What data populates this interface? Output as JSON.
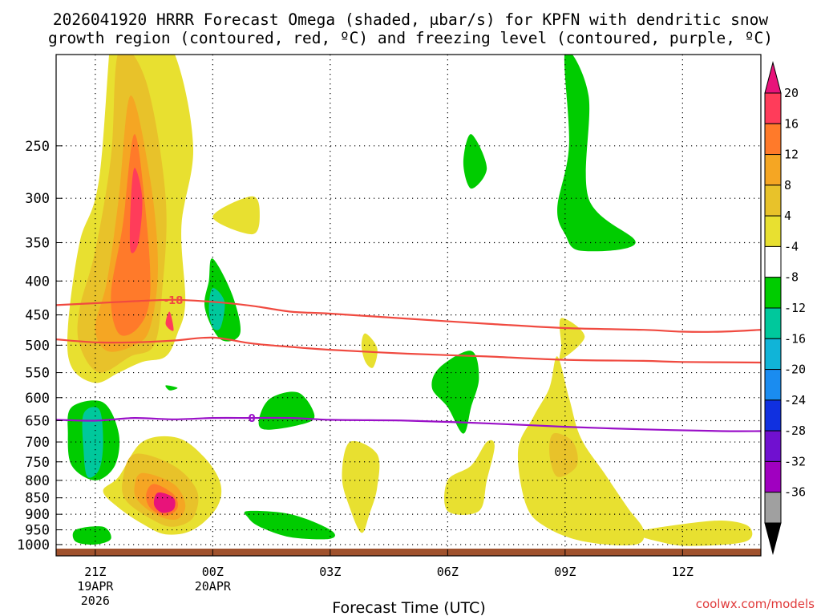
{
  "chart_data": {
    "type": "time-height cross section",
    "title_line1": "2026041920 HRRR Forecast Omega (shaded, μbar/s) for KPFN with dendritic snow",
    "title_line2": "growth region (contoured, red, ºC) and freezing level (contoured, purple, ºC)",
    "xlabel": "Forecast Time (UTC)",
    "credit": "coolwx.com/models",
    "x_range_hours": [
      -1,
      17
    ],
    "y_ticks": [
      "250",
      "300",
      "350",
      "400",
      "450",
      "500",
      "550",
      "600",
      "650",
      "700",
      "750",
      "800",
      "850",
      "900",
      "950",
      "1000"
    ],
    "x_ticks": [
      {
        "h": 0,
        "label": "21Z",
        "sub1": "19APR",
        "sub2": "2026"
      },
      {
        "h": 3,
        "label": "00Z",
        "sub1": "20APR",
        "sub2": ""
      },
      {
        "h": 6,
        "label": "03Z",
        "sub1": "",
        "sub2": ""
      },
      {
        "h": 9,
        "label": "06Z",
        "sub1": "",
        "sub2": ""
      },
      {
        "h": 12,
        "label": "09Z",
        "sub1": "",
        "sub2": ""
      },
      {
        "h": 15,
        "label": "12Z",
        "sub1": "",
        "sub2": ""
      }
    ],
    "colorbar": {
      "labels": [
        "20",
        "16",
        "12",
        "8",
        "4",
        "-4",
        "-8",
        "-12",
        "-16",
        "-20",
        "-24",
        "-28",
        "-32",
        "-36"
      ],
      "colors": [
        "#ff3c5a",
        "#ff7a2a",
        "#f5a623",
        "#e8c22a",
        "#e8e030",
        "#ffffff",
        "#00cc00",
        "#00c89c",
        "#10b4d8",
        "#1a8cf0",
        "#1030e0",
        "#7010d0",
        "#a000c0",
        "#a0a0a0"
      ],
      "over_color": "#e8137a",
      "under_color": "#000000"
    },
    "contours": [
      {
        "name": "dgz-upper",
        "label": "-18",
        "color": "#f04a40",
        "points": [
          [
            -1,
            435
          ],
          [
            0,
            432
          ],
          [
            1,
            429
          ],
          [
            2,
            427
          ],
          [
            3,
            430
          ],
          [
            4,
            436
          ],
          [
            5,
            445
          ],
          [
            6,
            448
          ],
          [
            8,
            456
          ],
          [
            10,
            464
          ],
          [
            12,
            471
          ],
          [
            14,
            474
          ],
          [
            15,
            477
          ],
          [
            16,
            477
          ],
          [
            17,
            474
          ]
        ]
      },
      {
        "name": "dgz-lower",
        "label": "",
        "color": "#f04a40",
        "points": [
          [
            -1,
            490
          ],
          [
            0,
            495
          ],
          [
            1,
            495
          ],
          [
            2,
            492
          ],
          [
            3,
            487
          ],
          [
            4,
            497
          ],
          [
            5,
            503
          ],
          [
            6,
            508
          ],
          [
            8,
            515
          ],
          [
            10,
            520
          ],
          [
            12,
            526
          ],
          [
            14,
            528
          ],
          [
            15,
            530
          ],
          [
            17,
            531
          ]
        ]
      },
      {
        "name": "freezing-level",
        "label": "0",
        "color": "#9a10c8",
        "points": [
          [
            -1,
            648
          ],
          [
            0,
            650
          ],
          [
            1,
            644
          ],
          [
            2,
            647
          ],
          [
            3,
            644
          ],
          [
            4,
            644
          ],
          [
            5,
            644
          ],
          [
            6,
            648
          ],
          [
            7,
            649
          ],
          [
            8,
            650
          ],
          [
            10,
            656
          ],
          [
            12,
            664
          ],
          [
            14,
            670
          ],
          [
            16,
            674
          ],
          [
            17,
            674
          ]
        ]
      }
    ],
    "omega_regions": [
      {
        "value": 4,
        "color": "#e8e030",
        "points": [
          [
            0.5,
            150
          ],
          [
            1,
            155
          ],
          [
            2,
            180
          ],
          [
            2.5,
            250
          ],
          [
            2.2,
            330
          ],
          [
            2.3,
            430
          ],
          [
            2.1,
            480
          ],
          [
            1.8,
            520
          ],
          [
            1.2,
            530
          ],
          [
            0.6,
            550
          ],
          [
            0,
            570
          ],
          [
            -0.6,
            540
          ],
          [
            -0.7,
            470
          ],
          [
            -0.4,
            350
          ],
          [
            0.1,
            280
          ]
        ]
      },
      {
        "value": 4,
        "color": "#e8e030",
        "points": [
          [
            3,
            320
          ],
          [
            4,
            298
          ],
          [
            4.2,
            318
          ],
          [
            4,
            340
          ]
        ]
      },
      {
        "value": 4,
        "color": "#e8e030",
        "points": [
          [
            6.9,
            480
          ],
          [
            7.2,
            505
          ],
          [
            7.1,
            540
          ],
          [
            6.9,
            530
          ],
          [
            6.8,
            500
          ]
        ]
      },
      {
        "value": 4,
        "color": "#e8e030",
        "points": [
          [
            11.9,
            455
          ],
          [
            12.5,
            485
          ],
          [
            11.9,
            525
          ],
          [
            11.9,
            500
          ]
        ]
      },
      {
        "value": 4,
        "color": "#e8e030",
        "points": [
          [
            11.8,
            520
          ],
          [
            12.1,
            600
          ],
          [
            12.4,
            690
          ],
          [
            13,
            780
          ],
          [
            13.6,
            880
          ],
          [
            14,
            950
          ],
          [
            13.8,
            1000
          ],
          [
            12.5,
            990
          ],
          [
            11.5,
            940
          ],
          [
            11,
            870
          ],
          [
            10.8,
            720
          ],
          [
            11.2,
            640
          ],
          [
            11.6,
            580
          ]
        ]
      },
      {
        "value": 4,
        "color": "#e8e030",
        "points": [
          [
            13.8,
            960
          ],
          [
            14.8,
            935
          ],
          [
            16,
            920
          ],
          [
            16.7,
            940
          ],
          [
            16.6,
            990
          ],
          [
            15.2,
            1005
          ],
          [
            14.4,
            990
          ]
        ]
      },
      {
        "value": 4,
        "color": "#e8e030",
        "points": [
          [
            1.2,
            700
          ],
          [
            2.1,
            690
          ],
          [
            2.8,
            740
          ],
          [
            3.2,
            810
          ],
          [
            3.1,
            880
          ],
          [
            2.5,
            950
          ],
          [
            1.8,
            965
          ],
          [
            1.2,
            930
          ],
          [
            0.6,
            880
          ],
          [
            0.2,
            830
          ],
          [
            0.6,
            790
          ]
        ]
      },
      {
        "value": 4,
        "color": "#e8e030",
        "points": [
          [
            6.5,
            700
          ],
          [
            7.2,
            730
          ],
          [
            7.2,
            820
          ],
          [
            7,
            900
          ],
          [
            6.8,
            960
          ],
          [
            6.5,
            880
          ],
          [
            6.3,
            790
          ]
        ]
      },
      {
        "value": 4,
        "color": "#e8e030",
        "points": [
          [
            9,
            800
          ],
          [
            9.6,
            760
          ],
          [
            10,
            700
          ],
          [
            10.2,
            710
          ],
          [
            10,
            800
          ],
          [
            9.8,
            890
          ],
          [
            9,
            890
          ]
        ]
      },
      {
        "value": 8,
        "color": "#e8c22a",
        "points": [
          [
            0.6,
            180
          ],
          [
            1.3,
            200
          ],
          [
            1.8,
            300
          ],
          [
            1.7,
            420
          ],
          [
            1.5,
            500
          ],
          [
            0.9,
            520
          ],
          [
            0.1,
            550
          ],
          [
            -0.4,
            500
          ],
          [
            -0.4,
            440
          ],
          [
            0,
            360
          ],
          [
            0.4,
            260
          ]
        ]
      },
      {
        "value": 8,
        "color": "#e8c22a",
        "points": [
          [
            11.7,
            680
          ],
          [
            12.2,
            700
          ],
          [
            12.3,
            760
          ],
          [
            11.8,
            790
          ],
          [
            11.6,
            730
          ]
        ]
      },
      {
        "value": 8,
        "color": "#e8c22a",
        "points": [
          [
            1.0,
            730
          ],
          [
            2.0,
            760
          ],
          [
            2.6,
            830
          ],
          [
            2.5,
            910
          ],
          [
            2,
            940
          ],
          [
            1.5,
            920
          ],
          [
            0.8,
            860
          ],
          [
            0.7,
            800
          ]
        ]
      },
      {
        "value": 12,
        "color": "#f5a623",
        "points": [
          [
            0.9,
            210
          ],
          [
            1.4,
            280
          ],
          [
            1.6,
            380
          ],
          [
            1.4,
            470
          ],
          [
            1,
            500
          ],
          [
            0.3,
            510
          ],
          [
            0,
            470
          ],
          [
            0.3,
            400
          ],
          [
            0.6,
            300
          ]
        ]
      },
      {
        "value": 12,
        "color": "#f5a623",
        "points": [
          [
            1.2,
            780
          ],
          [
            2.0,
            810
          ],
          [
            2.3,
            870
          ],
          [
            2.1,
            915
          ],
          [
            1.6,
            905
          ],
          [
            1.1,
            860
          ],
          [
            1.0,
            820
          ]
        ]
      },
      {
        "value": 16,
        "color": "#ff7a2a",
        "points": [
          [
            1,
            240
          ],
          [
            1.3,
            320
          ],
          [
            1.4,
            420
          ],
          [
            1.1,
            470
          ],
          [
            0.6,
            480
          ],
          [
            0.4,
            420
          ],
          [
            0.7,
            330
          ]
        ]
      },
      {
        "value": 16,
        "color": "#ff7a2a",
        "points": [
          [
            1.5,
            810
          ],
          [
            2.0,
            840
          ],
          [
            2.1,
            880
          ],
          [
            1.8,
            905
          ],
          [
            1.4,
            880
          ],
          [
            1.3,
            840
          ]
        ]
      },
      {
        "value": 20,
        "color": "#ff3c5a",
        "points": [
          [
            1.0,
            270
          ],
          [
            1.2,
            300
          ],
          [
            1.1,
            350
          ],
          [
            0.9,
            360
          ],
          [
            0.9,
            310
          ]
        ]
      },
      {
        "value": 20,
        "color": "#ff3c5a",
        "points": [
          [
            1.9,
            445
          ],
          [
            2.0,
            475
          ],
          [
            1.8,
            465
          ]
        ]
      },
      {
        "value": 24,
        "color": "#e8137a",
        "points": [
          [
            1.6,
            835
          ],
          [
            2.0,
            850
          ],
          [
            2.0,
            885
          ],
          [
            1.7,
            895
          ],
          [
            1.5,
            870
          ]
        ]
      },
      {
        "value": -4,
        "color": "#00cc00",
        "points": [
          [
            9.6,
            240
          ],
          [
            10,
            270
          ],
          [
            9.6,
            290
          ],
          [
            9.4,
            265
          ]
        ]
      },
      {
        "value": -4,
        "color": "#00cc00",
        "points": [
          [
            12,
            180
          ],
          [
            12.6,
            210
          ],
          [
            12.6,
            300
          ],
          [
            13.8,
            350
          ],
          [
            12.4,
            360
          ],
          [
            12,
            340
          ],
          [
            11.8,
            310
          ],
          [
            12.1,
            250
          ]
        ]
      },
      {
        "value": -4,
        "color": "#00cc00",
        "points": [
          [
            3,
            370
          ],
          [
            3.5,
            420
          ],
          [
            3.7,
            480
          ],
          [
            3.2,
            490
          ],
          [
            2.8,
            440
          ],
          [
            2.9,
            400
          ]
        ]
      },
      {
        "value": -4,
        "color": "#00cc00",
        "points": [
          [
            4.5,
            600
          ],
          [
            5.2,
            590
          ],
          [
            5.6,
            640
          ],
          [
            5.2,
            660
          ],
          [
            4.3,
            670
          ],
          [
            4.2,
            640
          ]
        ]
      },
      {
        "value": -4,
        "color": "#00cc00",
        "points": [
          [
            8.8,
            540
          ],
          [
            9.6,
            510
          ],
          [
            9.8,
            560
          ],
          [
            9.6,
            620
          ],
          [
            9.4,
            680
          ],
          [
            9,
            620
          ],
          [
            8.6,
            580
          ]
        ]
      },
      {
        "value": -4,
        "color": "#00cc00",
        "points": [
          [
            -0.6,
            620
          ],
          [
            0.2,
            610
          ],
          [
            0.6,
            680
          ],
          [
            0.5,
            760
          ],
          [
            0,
            800
          ],
          [
            -0.6,
            760
          ],
          [
            -0.7,
            680
          ]
        ]
      },
      {
        "value": -4,
        "color": "#00cc00",
        "points": [
          [
            3.9,
            890
          ],
          [
            5.0,
            900
          ],
          [
            6,
            950
          ],
          [
            6,
            980
          ],
          [
            5,
            975
          ],
          [
            4.2,
            940
          ],
          [
            3.9,
            910
          ]
        ]
      },
      {
        "value": -4,
        "color": "#00cc00",
        "points": [
          [
            -0.5,
            950
          ],
          [
            0.2,
            940
          ],
          [
            0.4,
            980
          ],
          [
            0,
            1000
          ],
          [
            -0.5,
            990
          ]
        ]
      },
      {
        "value": -4,
        "color": "#00cc00",
        "points": [
          [
            1.8,
            575
          ],
          [
            2.1,
            580
          ],
          [
            1.9,
            585
          ]
        ]
      },
      {
        "value": -8,
        "color": "#00c89c",
        "points": [
          [
            -0.3,
            635
          ],
          [
            0.1,
            625
          ],
          [
            0.2,
            700
          ],
          [
            0.1,
            770
          ],
          [
            -0.2,
            790
          ],
          [
            -0.3,
            720
          ]
        ]
      },
      {
        "value": -8,
        "color": "#00c89c",
        "points": [
          [
            3.0,
            410
          ],
          [
            3.3,
            430
          ],
          [
            3.2,
            470
          ],
          [
            3,
            470
          ],
          [
            2.9,
            440
          ]
        ]
      }
    ]
  }
}
